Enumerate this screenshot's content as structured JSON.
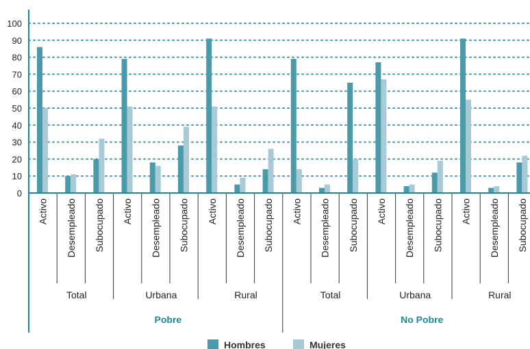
{
  "chart_data": {
    "type": "bar",
    "title": "",
    "xlabel": "",
    "ylabel": "",
    "ylim": [
      0,
      100
    ],
    "yticks": [
      0,
      10,
      20,
      30,
      40,
      50,
      60,
      70,
      80,
      90,
      100
    ],
    "grid": "horizontal-dotted",
    "legend_position": "bottom",
    "colors": {
      "axis": "#1a8a9a",
      "grid": "#3a9aa8",
      "group_label": "#1a8a9a"
    },
    "top_groups": [
      "Pobre",
      "No Pobre"
    ],
    "area_groups": [
      "Total",
      "Urbana",
      "Rural",
      "Total",
      "Urbana",
      "Rural"
    ],
    "categories": [
      "Activo",
      "Desempleado",
      "Subocupado",
      "Activo",
      "Desempleado",
      "Subocupado",
      "Activo",
      "Desempleado",
      "Subocupado",
      "Activo",
      "Desempleado",
      "Subocupado",
      "Activo",
      "Desempleado",
      "Subocupado",
      "Activo",
      "Desempleado",
      "Subocupado"
    ],
    "series": [
      {
        "name": "Hombres",
        "color": "#4a9aaa",
        "values": [
          86,
          10,
          20,
          79,
          18,
          28,
          91,
          5,
          14,
          79,
          3,
          65,
          77,
          4,
          12,
          91,
          3,
          18
        ]
      },
      {
        "name": "Mujeres",
        "color": "#a8cad6",
        "values": [
          50,
          11,
          32,
          51,
          16,
          39,
          51,
          9,
          26,
          14,
          5,
          20,
          67,
          5,
          19,
          55,
          4,
          22
        ]
      }
    ]
  }
}
